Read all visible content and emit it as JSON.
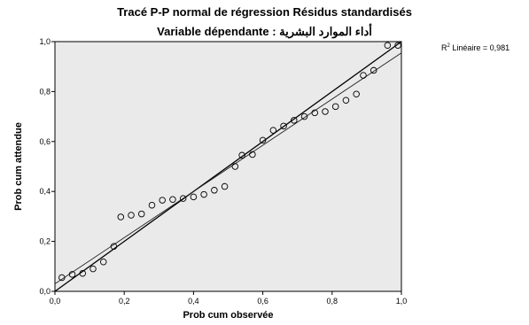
{
  "chart_data": {
    "type": "scatter",
    "title": "Tracé P-P normal de régression Résidus standardisés",
    "subtitle_prefix": "Variable dépendante :",
    "subtitle_variable": "أداء الموارد البشرية",
    "xlabel": "Prob cum observée",
    "ylabel": "Prob cum attendue",
    "xlim": [
      0.0,
      1.0
    ],
    "ylim": [
      0.0,
      1.0
    ],
    "xticks": [
      "0,0",
      "0,2",
      "0,4",
      "0,6",
      "0,8",
      "1,0"
    ],
    "yticks": [
      "0,0",
      "0,2",
      "0,4",
      "0,6",
      "0,8",
      "1,0"
    ],
    "r2_label": "Linéaire = 0,981",
    "grid": false,
    "background": "#eaeaea",
    "marker": "hollow-circle",
    "points": [
      [
        0.02,
        0.055
      ],
      [
        0.05,
        0.068
      ],
      [
        0.08,
        0.072
      ],
      [
        0.11,
        0.09
      ],
      [
        0.14,
        0.118
      ],
      [
        0.17,
        0.18
      ],
      [
        0.19,
        0.298
      ],
      [
        0.22,
        0.305
      ],
      [
        0.25,
        0.31
      ],
      [
        0.28,
        0.345
      ],
      [
        0.31,
        0.365
      ],
      [
        0.34,
        0.368
      ],
      [
        0.37,
        0.372
      ],
      [
        0.4,
        0.378
      ],
      [
        0.43,
        0.388
      ],
      [
        0.46,
        0.405
      ],
      [
        0.49,
        0.42
      ],
      [
        0.52,
        0.5
      ],
      [
        0.54,
        0.545
      ],
      [
        0.57,
        0.548
      ],
      [
        0.6,
        0.605
      ],
      [
        0.63,
        0.645
      ],
      [
        0.66,
        0.662
      ],
      [
        0.69,
        0.685
      ],
      [
        0.72,
        0.7
      ],
      [
        0.75,
        0.715
      ],
      [
        0.78,
        0.72
      ],
      [
        0.81,
        0.74
      ],
      [
        0.84,
        0.765
      ],
      [
        0.87,
        0.79
      ],
      [
        0.89,
        0.865
      ],
      [
        0.92,
        0.885
      ],
      [
        0.96,
        0.985
      ],
      [
        0.99,
        0.985
      ]
    ],
    "reference_line": [
      [
        0.0,
        0.0
      ],
      [
        1.0,
        1.0
      ]
    ],
    "fit_line": [
      [
        0.0,
        0.03
      ],
      [
        1.0,
        0.955
      ]
    ]
  }
}
